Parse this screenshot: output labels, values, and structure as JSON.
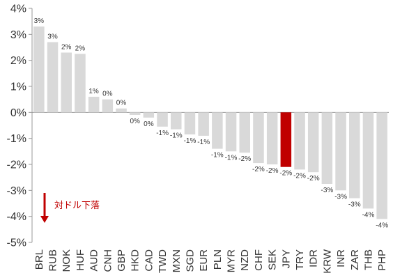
{
  "chart_data": {
    "type": "bar",
    "title": "",
    "xlabel": "",
    "ylabel": "",
    "ylim": [
      -5,
      4
    ],
    "yticks": [
      "4%",
      "3%",
      "2%",
      "1%",
      "0%",
      "-1%",
      "-2%",
      "-3%",
      "-4%",
      "-5%"
    ],
    "ytick_values": [
      4,
      3,
      2,
      1,
      0,
      -1,
      -2,
      -3,
      -4,
      -5
    ],
    "grid": false,
    "categories": [
      "BRL",
      "RUB",
      "NOK",
      "HUF",
      "AUD",
      "CNH",
      "GBP",
      "HKD",
      "CAD",
      "TWD",
      "MXN",
      "SGD",
      "EUR",
      "PLN",
      "MYR",
      "NZD",
      "CHF",
      "SEK",
      "JPY",
      "TRY",
      "IDR",
      "KRW",
      "INR",
      "ZAR",
      "THB",
      "PHP"
    ],
    "values": [
      3.3,
      2.7,
      2.3,
      2.25,
      0.6,
      0.5,
      0.15,
      -0.1,
      -0.2,
      -0.55,
      -0.65,
      -0.85,
      -0.9,
      -1.4,
      -1.5,
      -1.55,
      -1.95,
      -2.0,
      -2.1,
      -2.2,
      -2.3,
      -2.75,
      -3.0,
      -3.3,
      -3.7,
      -4.1
    ],
    "data_labels": [
      "3%",
      "3%",
      "2%",
      "2%",
      "1%",
      "0%",
      "0%",
      "0%",
      "0%",
      "-1%",
      "-1%",
      "-1%",
      "-1%",
      "-1%",
      "-1%",
      "-2%",
      "-2%",
      "-2%",
      "-2%",
      "-2%",
      "-2%",
      "-3%",
      "-3%",
      "-3%",
      "-4%",
      "-4%"
    ],
    "highlight_category": "JPY",
    "colors": {
      "bar": "#d9d9d9",
      "highlight": "#c00000",
      "axis": "#999999",
      "text": "#333333"
    },
    "annotation": {
      "text": "対ドル下落",
      "arrow": "down",
      "color": "#c00000"
    }
  }
}
